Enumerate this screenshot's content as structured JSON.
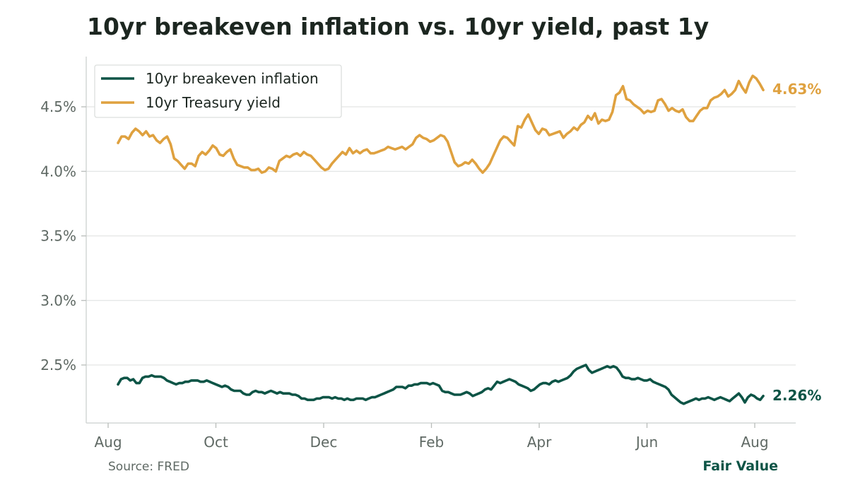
{
  "chart_data": {
    "type": "line",
    "title": "10yr breakeven inflation vs. 10yr yield, past 1y",
    "xlabel": "",
    "ylabel": "",
    "x_ticks": [
      "Aug",
      "Oct",
      "Dec",
      "Feb",
      "Apr",
      "Jun",
      "Aug"
    ],
    "y_ticks": [
      "2.5%",
      "3.0%",
      "3.5%",
      "4.0%",
      "4.5%"
    ],
    "ylim": [
      2.05,
      4.85
    ],
    "grid": "horizontal",
    "legend_position": "top-left",
    "series": [
      {
        "name": "10yr breakeven inflation",
        "color": "#0d5446",
        "end_label": "2.26%",
        "values": [
          2.35,
          2.39,
          2.4,
          2.4,
          2.38,
          2.39,
          2.36,
          2.36,
          2.4,
          2.41,
          2.41,
          2.42,
          2.41,
          2.41,
          2.41,
          2.4,
          2.38,
          2.37,
          2.36,
          2.35,
          2.36,
          2.36,
          2.37,
          2.37,
          2.38,
          2.38,
          2.38,
          2.37,
          2.37,
          2.38,
          2.37,
          2.36,
          2.35,
          2.34,
          2.33,
          2.34,
          2.33,
          2.31,
          2.3,
          2.3,
          2.3,
          2.28,
          2.27,
          2.27,
          2.29,
          2.3,
          2.29,
          2.29,
          2.28,
          2.29,
          2.3,
          2.29,
          2.28,
          2.29,
          2.28,
          2.28,
          2.28,
          2.27,
          2.27,
          2.26,
          2.24,
          2.24,
          2.23,
          2.23,
          2.23,
          2.24,
          2.24,
          2.25,
          2.25,
          2.25,
          2.24,
          2.25,
          2.24,
          2.24,
          2.23,
          2.24,
          2.23,
          2.23,
          2.24,
          2.24,
          2.24,
          2.23,
          2.24,
          2.25,
          2.25,
          2.26,
          2.27,
          2.28,
          2.29,
          2.3,
          2.31,
          2.33,
          2.33,
          2.33,
          2.32,
          2.34,
          2.34,
          2.35,
          2.35,
          2.36,
          2.36,
          2.36,
          2.35,
          2.36,
          2.35,
          2.34,
          2.3,
          2.29,
          2.29,
          2.28,
          2.27,
          2.27,
          2.27,
          2.28,
          2.29,
          2.28,
          2.26,
          2.27,
          2.28,
          2.29,
          2.31,
          2.32,
          2.31,
          2.34,
          2.37,
          2.36,
          2.37,
          2.38,
          2.39,
          2.38,
          2.37,
          2.35,
          2.34,
          2.33,
          2.32,
          2.3,
          2.31,
          2.33,
          2.35,
          2.36,
          2.36,
          2.35,
          2.37,
          2.38,
          2.37,
          2.38,
          2.39,
          2.4,
          2.42,
          2.45,
          2.47,
          2.48,
          2.49,
          2.5,
          2.46,
          2.44,
          2.45,
          2.46,
          2.47,
          2.48,
          2.49,
          2.48,
          2.49,
          2.48,
          2.45,
          2.41,
          2.4,
          2.4,
          2.39,
          2.39,
          2.4,
          2.39,
          2.38,
          2.38,
          2.39,
          2.37,
          2.36,
          2.35,
          2.34,
          2.33,
          2.31,
          2.27,
          2.25,
          2.23,
          2.21,
          2.2,
          2.21,
          2.22,
          2.23,
          2.24,
          2.23,
          2.24,
          2.24,
          2.25,
          2.24,
          2.23,
          2.24,
          2.25,
          2.24,
          2.23,
          2.22,
          2.24,
          2.26,
          2.28,
          2.25,
          2.21,
          2.25,
          2.27,
          2.26,
          2.24,
          2.23,
          2.26
        ]
      },
      {
        "name": "10yr Treasury yield",
        "color": "#dfa13f",
        "end_label": "4.63%",
        "values": [
          4.22,
          4.27,
          4.27,
          4.25,
          4.3,
          4.33,
          4.31,
          4.28,
          4.31,
          4.27,
          4.28,
          4.24,
          4.22,
          4.25,
          4.27,
          4.21,
          4.1,
          4.08,
          4.05,
          4.02,
          4.06,
          4.06,
          4.04,
          4.12,
          4.15,
          4.13,
          4.16,
          4.2,
          4.18,
          4.13,
          4.12,
          4.15,
          4.17,
          4.1,
          4.05,
          4.04,
          4.03,
          4.03,
          4.01,
          4.01,
          4.02,
          3.99,
          4.0,
          4.03,
          4.02,
          4.0,
          4.08,
          4.1,
          4.12,
          4.11,
          4.13,
          4.14,
          4.12,
          4.15,
          4.13,
          4.12,
          4.09,
          4.06,
          4.03,
          4.01,
          4.02,
          4.06,
          4.09,
          4.12,
          4.15,
          4.13,
          4.18,
          4.14,
          4.16,
          4.14,
          4.16,
          4.17,
          4.14,
          4.14,
          4.15,
          4.16,
          4.17,
          4.19,
          4.18,
          4.17,
          4.18,
          4.19,
          4.17,
          4.19,
          4.21,
          4.26,
          4.28,
          4.26,
          4.25,
          4.23,
          4.24,
          4.26,
          4.28,
          4.27,
          4.23,
          4.15,
          4.07,
          4.04,
          4.05,
          4.07,
          4.06,
          4.09,
          4.06,
          4.02,
          3.99,
          4.02,
          4.06,
          4.12,
          4.18,
          4.24,
          4.27,
          4.26,
          4.23,
          4.2,
          4.35,
          4.34,
          4.4,
          4.44,
          4.38,
          4.32,
          4.29,
          4.33,
          4.32,
          4.28,
          4.29,
          4.3,
          4.31,
          4.26,
          4.29,
          4.31,
          4.34,
          4.32,
          4.36,
          4.38,
          4.43,
          4.4,
          4.45,
          4.37,
          4.4,
          4.39,
          4.4,
          4.46,
          4.59,
          4.61,
          4.66,
          4.56,
          4.55,
          4.52,
          4.5,
          4.48,
          4.45,
          4.47,
          4.46,
          4.47,
          4.55,
          4.56,
          4.52,
          4.47,
          4.49,
          4.47,
          4.46,
          4.48,
          4.42,
          4.39,
          4.39,
          4.43,
          4.47,
          4.49,
          4.49,
          4.55,
          4.57,
          4.58,
          4.6,
          4.63,
          4.58,
          4.6,
          4.63,
          4.7,
          4.65,
          4.61,
          4.69,
          4.74,
          4.72,
          4.68,
          4.63
        ]
      }
    ],
    "source": "Source: FRED",
    "brand": "Fair Value"
  }
}
